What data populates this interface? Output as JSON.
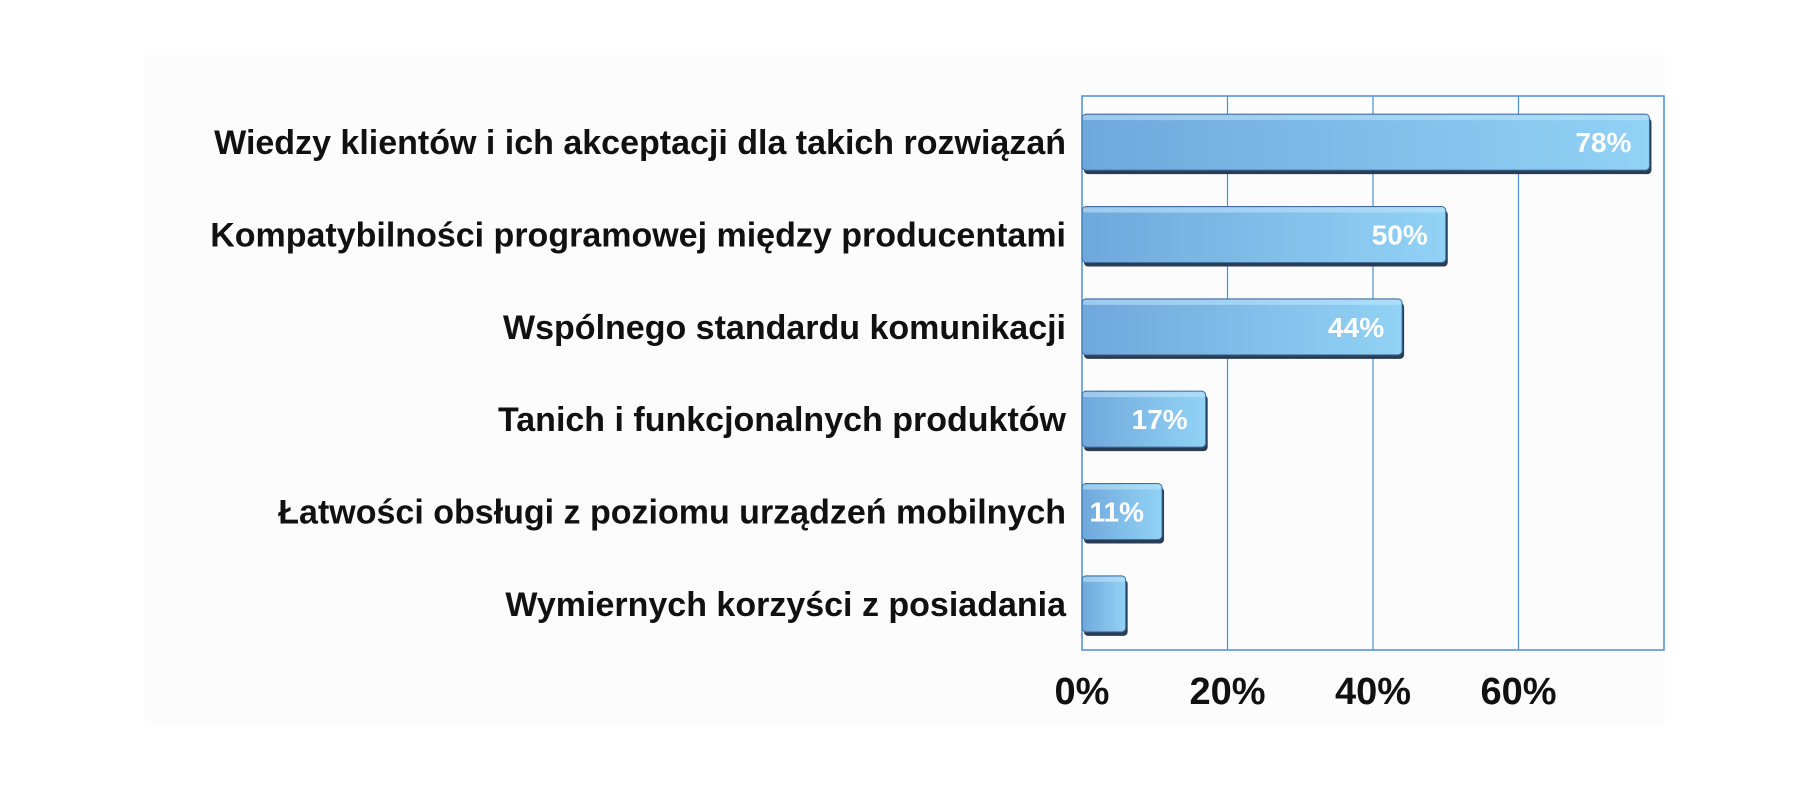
{
  "chart_data": {
    "type": "bar",
    "orientation": "horizontal",
    "categories": [
      "Wiedzy klientów i ich akceptacji dla takich rozwiązań",
      "Kompatybilności programowej między producentami",
      "Wspólnego standardu komunikacji",
      "Tanich i funkcjonalnych produktów",
      "Łatwości obsługi z poziomu urządzeń mobilnych",
      "Wymiernych korzyści z posiadania"
    ],
    "values": [
      78,
      50,
      44,
      17,
      11,
      6
    ],
    "value_labels": [
      "78%",
      "50%",
      "44%",
      "17%",
      "11%",
      ""
    ],
    "xticks": [
      0,
      20,
      40,
      60
    ],
    "xtick_labels": [
      "0%",
      "20%",
      "40%",
      "60%"
    ],
    "xlim": [
      0,
      80
    ],
    "grid": true,
    "colors": {
      "bar_light": "#92d2f5",
      "bar_dark": "#6fa8dc",
      "bar_shadow": "#2a3d55",
      "grid": "#4a90d9"
    }
  }
}
